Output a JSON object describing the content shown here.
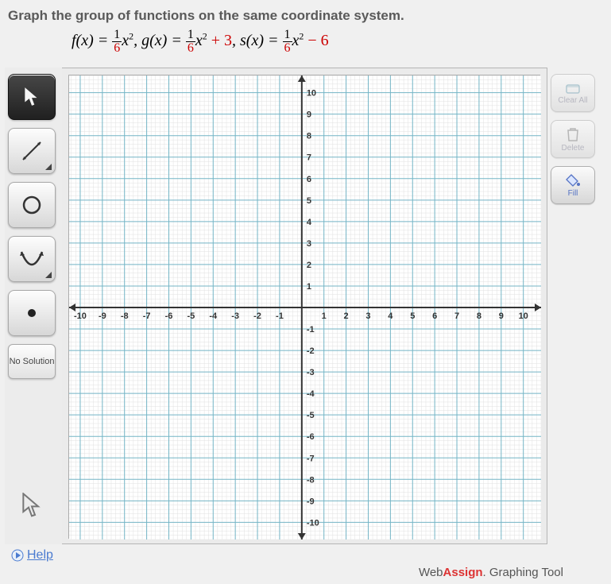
{
  "title": "Graph the group of functions on the same coordinate system.",
  "equation": {
    "f_label": "f(x) = ",
    "g_label": ", g(x) = ",
    "s_label": ", s(x) = ",
    "frac_num": "1",
    "frac_den": "6",
    "x2": "x",
    "exp": "2",
    "plus3": " + 3",
    "minus6": " − 6"
  },
  "tools": {
    "pointer": "pointer-tool",
    "line": "line-tool",
    "circle": "circle-tool",
    "parabola": "parabola-tool",
    "point": "point-tool",
    "no_solution": "No Solution"
  },
  "right_tools": {
    "clear_label": "Clear All",
    "delete_label": "Delete",
    "fill_label": "Fill"
  },
  "graph": {
    "type": "cartesian-grid",
    "xlim": [
      -10.5,
      10.8
    ],
    "ylim": [
      -10.8,
      10.8
    ],
    "xtick_labels": [
      "-10",
      "-9",
      "-8",
      "-7",
      "-6",
      "-5",
      "-4",
      "-3",
      "-2",
      "-1",
      "1",
      "2",
      "3",
      "4",
      "5",
      "6",
      "7",
      "8",
      "9",
      "10"
    ],
    "ytick_labels": [
      "10",
      "9",
      "8",
      "7",
      "6",
      "5",
      "4",
      "3",
      "2",
      "1",
      "-1",
      "-2",
      "-3",
      "-4",
      "-5",
      "-6",
      "-7",
      "-8",
      "-9",
      "-10"
    ],
    "major_step": 1,
    "grid_color": "#74b5c6",
    "subgrid_color": "#e0e0e0",
    "axis_color": "#333333",
    "background_color": "#ffffff",
    "label_fontsize": 11,
    "label_color": "#333333",
    "arrow_size": 8
  },
  "help_label": "Help",
  "footer": "WebAssign. Graphing Tool"
}
